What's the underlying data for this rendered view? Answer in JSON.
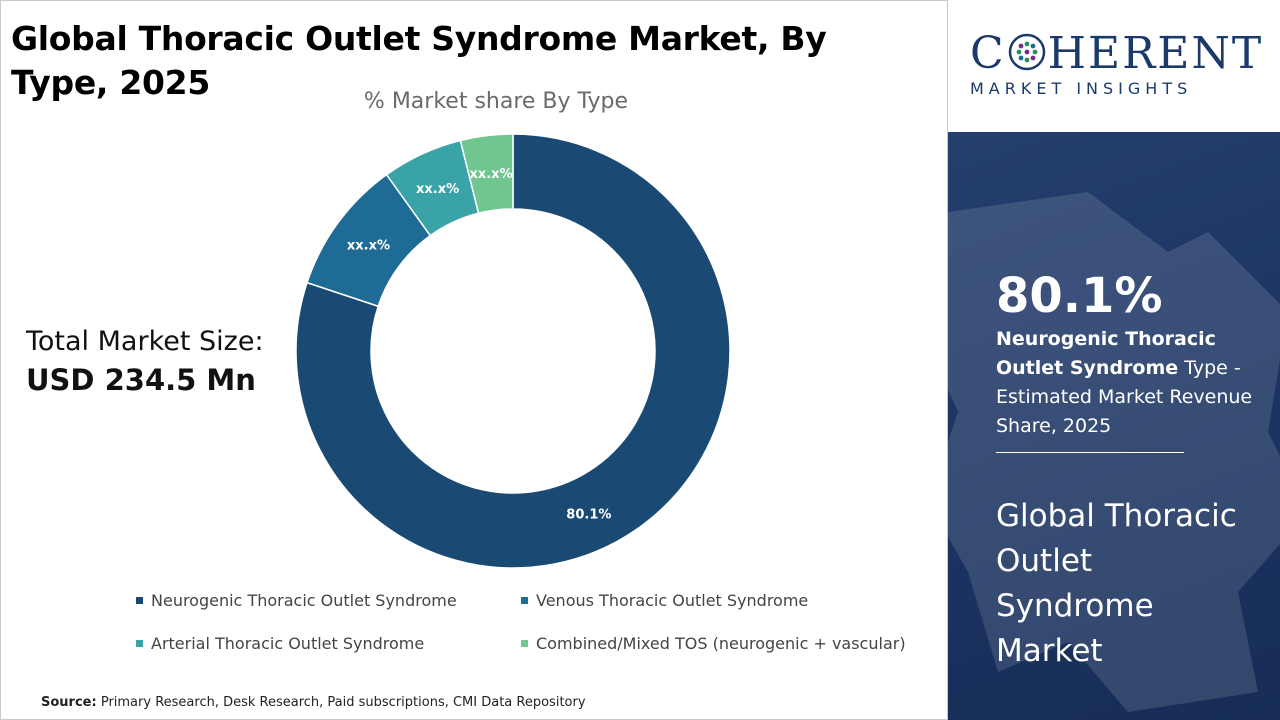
{
  "header": {
    "title": "Global Thoracic Outlet Syndrome Market, By Type, 2025"
  },
  "total_market": {
    "label": "Total Market Size:",
    "value": "USD 234.5 Mn"
  },
  "chart_data": {
    "type": "pie",
    "style": "donut",
    "title": "% Market share By Type",
    "categories": [
      "Neurogenic Thoracic Outlet Syndrome",
      "Venous Thoracic Outlet Syndrome",
      "Arterial Thoracic Outlet Syndrome",
      "Combined/Mixed TOS (neurogenic + vascular)"
    ],
    "values": [
      80.1,
      10.0,
      6.0,
      3.9
    ],
    "data_labels": [
      "80.1%",
      "xx.x%",
      "xx.x%",
      "xx.x%"
    ],
    "colors": [
      "#1a4a74",
      "#1e6b96",
      "#3aa3a8",
      "#6fc78f"
    ],
    "legend_position": "bottom"
  },
  "source": {
    "label": "Source:",
    "text": "Primary Research, Desk Research, Paid subscriptions, CMI Data Repository"
  },
  "brand": {
    "name_part1": "C",
    "name_part2": "HERENT",
    "tagline": "MARKET INSIGHTS",
    "color": "#1b3a6b"
  },
  "side_panel": {
    "highlight_value": "80.1%",
    "highlight_bold": "Neurogenic Thoracic Outlet Syndrome",
    "highlight_rest": " Type - Estimated Market Revenue Share, 2025",
    "market_name": "Global Thoracic Outlet Syndrome Market"
  }
}
